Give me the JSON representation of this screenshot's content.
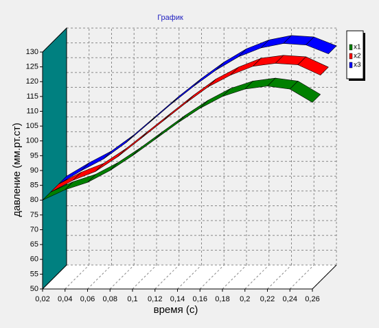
{
  "chart_data": {
    "type": "ribbon3d",
    "title": "График",
    "x_label": "время (с)",
    "y_label": "давление (мм.рт.ст)",
    "x": [
      0.02,
      0.04,
      0.06,
      0.08,
      0.1,
      0.12,
      0.14,
      0.16,
      0.18,
      0.2,
      0.22,
      0.24,
      0.26
    ],
    "series": [
      {
        "name": "x1",
        "color": "#008000",
        "values": [
          80,
          83.5,
          86,
          90,
          95,
          100.5,
          106,
          111,
          115,
          117.5,
          118.5,
          117.5,
          113
        ]
      },
      {
        "name": "x2",
        "color": "#ff0000",
        "values": [
          80,
          84,
          87,
          92,
          98,
          104,
          110,
          115.5,
          119.5,
          122.5,
          123.5,
          123,
          119.5
        ]
      },
      {
        "name": "x3",
        "color": "#0000ff",
        "values": [
          80,
          84.5,
          88.5,
          94,
          100.5,
          107,
          113,
          118.5,
          123,
          126,
          127.5,
          127,
          124
        ]
      }
    ],
    "xlim": [
      0.02,
      0.26
    ],
    "xticks": [
      {
        "value": 0.02,
        "label": "0,02"
      },
      {
        "value": 0.04,
        "label": "0,04"
      },
      {
        "value": 0.06,
        "label": "0,06"
      },
      {
        "value": 0.08,
        "label": "0,08"
      },
      {
        "value": 0.1,
        "label": "0,1"
      },
      {
        "value": 0.12,
        "label": "0,12"
      },
      {
        "value": 0.14,
        "label": "0,14"
      },
      {
        "value": 0.16,
        "label": "0,16"
      },
      {
        "value": 0.18,
        "label": "0,18"
      },
      {
        "value": 0.2,
        "label": "0,2"
      },
      {
        "value": 0.22,
        "label": "0,22"
      },
      {
        "value": 0.24,
        "label": "0,24"
      },
      {
        "value": 0.26,
        "label": "0,26"
      }
    ],
    "ylim": [
      50,
      130
    ],
    "yticks": [
      50,
      55,
      60,
      65,
      70,
      75,
      80,
      85,
      90,
      95,
      100,
      105,
      110,
      115,
      120,
      125,
      130
    ],
    "grid": true,
    "wall_color": "#008080",
    "legend": "right"
  }
}
